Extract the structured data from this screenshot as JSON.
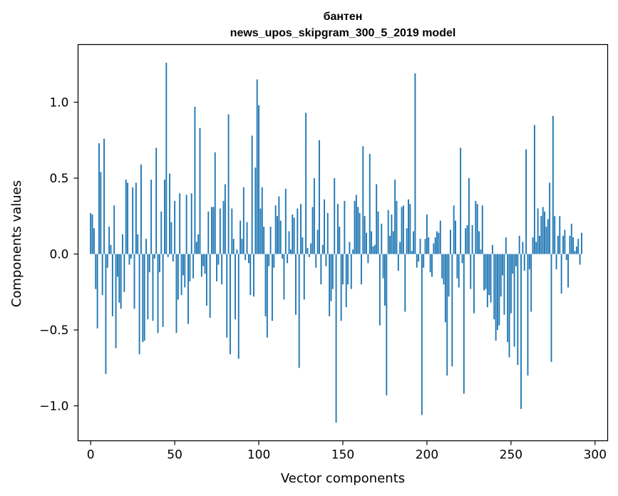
{
  "chart_data": {
    "type": "bar",
    "title": "бантен",
    "subtitle": "news_upos_skipgram_300_5_2019 model",
    "xlabel": "Vector components",
    "ylabel": "Components values",
    "xlim": [
      -7.5,
      307.5
    ],
    "ylim": [
      -1.23,
      1.38
    ],
    "xticks": [
      0,
      50,
      100,
      150,
      200,
      250,
      300
    ],
    "xtick_labels": [
      "0",
      "50",
      "100",
      "150",
      "200",
      "250",
      "300"
    ],
    "yticks": [
      -1.0,
      -0.5,
      0.0,
      0.5,
      1.0
    ],
    "ytick_labels": [
      "−1.0",
      "−0.5",
      "0.0",
      "0.5",
      "1.0"
    ],
    "bar_color": "#1f77b4",
    "grid": false,
    "series": [
      {
        "name": "бантен",
        "values": [
          0.27,
          0.26,
          0.17,
          -0.23,
          -0.49,
          0.73,
          0.54,
          -0.27,
          0.76,
          -0.79,
          -0.09,
          0.18,
          0.06,
          -0.41,
          0.32,
          -0.62,
          -0.15,
          -0.32,
          -0.36,
          0.13,
          -0.25,
          0.49,
          0.47,
          -0.07,
          -0.03,
          0.44,
          -0.36,
          0.47,
          0.13,
          -0.66,
          0.59,
          -0.58,
          -0.57,
          0.1,
          -0.43,
          -0.12,
          0.49,
          -0.44,
          -0.03,
          0.7,
          -0.52,
          -0.12,
          0.28,
          -0.48,
          0.49,
          1.26,
          -0.02,
          0.53,
          0.21,
          -0.05,
          0.35,
          -0.52,
          -0.3,
          0.4,
          -0.27,
          -0.14,
          -0.22,
          0.39,
          -0.46,
          -0.18,
          0.4,
          -0.16,
          0.97,
          0.08,
          0.13,
          0.83,
          -0.15,
          -0.08,
          -0.13,
          -0.34,
          0.28,
          -0.42,
          0.31,
          0.31,
          0.67,
          -0.18,
          -0.07,
          0.3,
          -0.2,
          0.35,
          0.46,
          -0.55,
          0.92,
          -0.66,
          0.3,
          0.1,
          -0.43,
          0.03,
          -0.69,
          0.22,
          0.1,
          0.44,
          -0.04,
          0.21,
          -0.06,
          -0.27,
          0.78,
          -0.28,
          0.57,
          1.15,
          0.98,
          0.3,
          0.44,
          0.18,
          -0.41,
          -0.55,
          -0.08,
          0.18,
          -0.44,
          -0.09,
          0.32,
          0.25,
          0.38,
          0.22,
          -0.03,
          -0.3,
          0.43,
          -0.06,
          0.15,
          0.03,
          0.26,
          0.24,
          -0.4,
          0.3,
          -0.75,
          0.33,
          0.11,
          -0.3,
          0.93,
          0.04,
          -0.02,
          0.07,
          0.31,
          0.5,
          -0.09,
          0.16,
          0.75,
          -0.2,
          0.06,
          0.36,
          -0.08,
          0.27,
          -0.41,
          -0.31,
          -0.23,
          0.5,
          -1.11,
          0.33,
          0.18,
          -0.44,
          -0.2,
          0.35,
          -0.35,
          -0.2,
          0.08,
          -0.23,
          0.03,
          0.35,
          0.39,
          0.31,
          0.27,
          -0.2,
          0.71,
          0.25,
          0.14,
          -0.06,
          0.66,
          0.15,
          0.05,
          0.06,
          0.46,
          0.28,
          -0.47,
          0.2,
          -0.16,
          -0.34,
          -0.93,
          0.29,
          0.12,
          0.26,
          0.15,
          0.49,
          0.35,
          -0.11,
          0.08,
          0.31,
          0.32,
          -0.38,
          0.17,
          0.36,
          0.33,
          0.02,
          0.15,
          1.19,
          -0.09,
          -0.05,
          0.1,
          -1.06,
          -0.09,
          0.1,
          0.26,
          0.11,
          -0.12,
          -0.15,
          0.07,
          0.11,
          0.15,
          0.14,
          0.22,
          -0.16,
          -0.2,
          -0.45,
          -0.8,
          -0.28,
          0.16,
          -0.74,
          0.32,
          0.22,
          -0.16,
          -0.22,
          0.7,
          -0.06,
          -0.92,
          0.17,
          0.19,
          0.5,
          -0.23,
          0.19,
          -0.39,
          0.35,
          0.33,
          0.15,
          0.03,
          0.32,
          -0.24,
          -0.23,
          -0.35,
          -0.27,
          -0.32,
          0.06,
          -0.43,
          -0.57,
          -0.5,
          -0.47,
          -0.28,
          -0.14,
          -0.4,
          0.11,
          -0.58,
          -0.68,
          -0.39,
          -0.13,
          -0.61,
          -0.08,
          -0.73,
          0.12,
          -1.02,
          0.08,
          -0.11,
          0.69,
          -0.8,
          -0.1,
          -0.38,
          0.11,
          0.85,
          0.08,
          0.3,
          0.12,
          0.25,
          0.31,
          0.28,
          0.18,
          0.23,
          0.47,
          -0.71,
          0.91,
          0.25,
          -0.1,
          0.12,
          0.25,
          -0.26,
          0.12,
          0.16,
          -0.04,
          -0.22,
          0.12,
          0.2,
          0.11,
          0.02,
          0.05,
          0.1,
          -0.07,
          0.14
        ]
      }
    ]
  }
}
